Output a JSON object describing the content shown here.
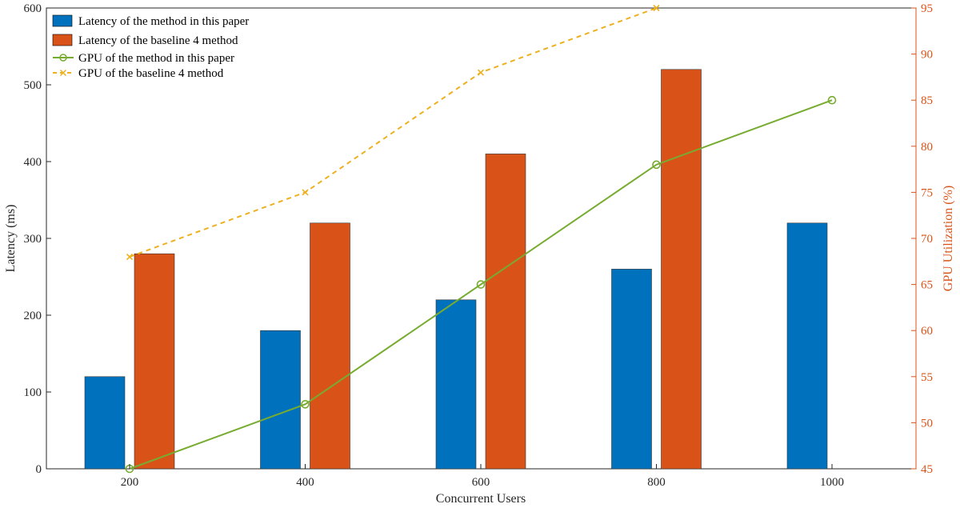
{
  "chart_data": {
    "type": "bar",
    "xlabel": "Concurrent Users",
    "ylabel": "Latency (ms)",
    "y2label": "GPU Utilization (%)",
    "categories": [
      "200",
      "400",
      "600",
      "800",
      "1000"
    ],
    "ylim": [
      0,
      600
    ],
    "y2lim": [
      45,
      95
    ],
    "yticks": [
      0,
      100,
      200,
      300,
      400,
      500,
      600
    ],
    "y2ticks": [
      45,
      50,
      55,
      60,
      65,
      70,
      75,
      80,
      85,
      90,
      95
    ],
    "series": [
      {
        "name": "Latency of the method in this paper",
        "type": "bar",
        "axis": "left",
        "color": "#0072bd",
        "values": [
          120,
          180,
          220,
          260,
          320
        ]
      },
      {
        "name": "Latency of the baseline 4 method",
        "type": "bar",
        "axis": "left",
        "color": "#d95319",
        "values": [
          280,
          320,
          410,
          520,
          null
        ]
      },
      {
        "name": "GPU of the method in this paper",
        "type": "line",
        "axis": "right",
        "color": "#77ac30",
        "marker": "circle",
        "values": [
          45,
          52,
          65,
          78,
          85
        ]
      },
      {
        "name": "GPU of the baseline 4 method",
        "type": "line",
        "axis": "right",
        "color": "#edb120",
        "marker": "x",
        "dashed": true,
        "values": [
          68,
          75,
          88,
          95,
          null
        ]
      }
    ],
    "legend_position": "top-left",
    "grid": false
  }
}
